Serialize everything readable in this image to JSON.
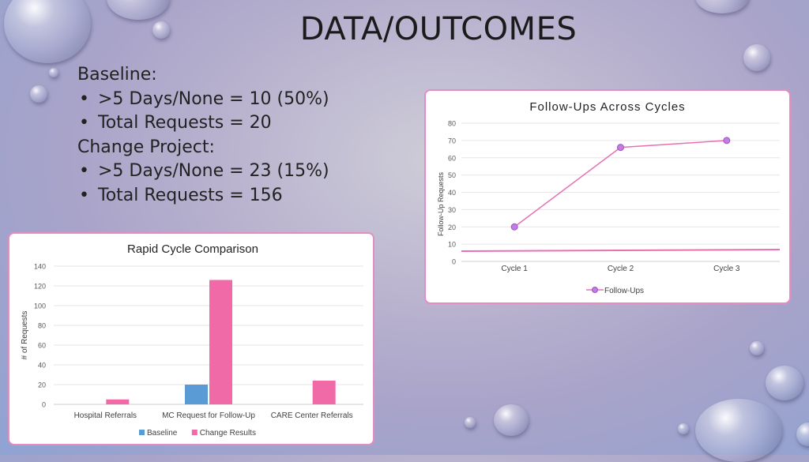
{
  "slide": {
    "title": "DATA/OUTCOMES",
    "baseline_heading": "Baseline:",
    "baseline_items": [
      ">5 Days/None = 10 (50%)",
      "Total Requests = 20"
    ],
    "change_heading": "Change Project:",
    "change_items": [
      ">5 Days/None = 23 (15%)",
      "Total Requests = 156"
    ]
  },
  "chart_data": [
    {
      "type": "bar",
      "title": "Rapid Cycle Comparison",
      "xlabel": "",
      "ylabel": "# of Requests",
      "categories": [
        "Hospital Referrals",
        "MC Request for Follow-Up",
        "CARE Center Referrals"
      ],
      "series": [
        {
          "name": "Baseline",
          "values": [
            0,
            20,
            0
          ],
          "color": "#5b9bd5"
        },
        {
          "name": "Change Results",
          "values": [
            5,
            126,
            24
          ],
          "color": "#f06aa8"
        }
      ],
      "ylim": [
        0,
        140
      ],
      "yticks": [
        0,
        20,
        40,
        60,
        80,
        100,
        120,
        140
      ],
      "legend": "bottom",
      "grid": true
    },
    {
      "type": "line",
      "title": "Follow-Ups Across Cycles",
      "xlabel": "",
      "ylabel": "Follow-Up Requests",
      "categories": [
        "Cycle 1",
        "Cycle 2",
        "Cycle 3"
      ],
      "series": [
        {
          "name": "Follow-Ups",
          "values": [
            20,
            66,
            70
          ],
          "color": "#e870b4",
          "marker": "#c07ee0"
        }
      ],
      "ylim": [
        0,
        80
      ],
      "yticks": [
        0,
        10,
        20,
        30,
        40,
        50,
        60,
        70,
        80
      ],
      "legend": "bottom",
      "grid": true
    }
  ]
}
